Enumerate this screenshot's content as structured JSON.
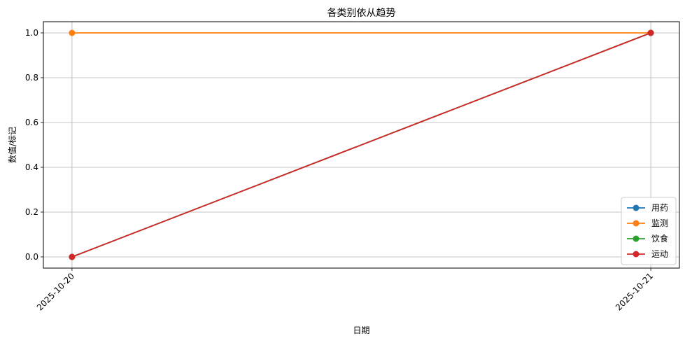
{
  "chart_data": {
    "type": "line",
    "title": "各类别依从趋势",
    "xlabel": "日期",
    "ylabel": "数值/标记",
    "x": [
      "2025-10-20",
      "2025-10-21"
    ],
    "ylim": [
      -0.05,
      1.05
    ],
    "yticks": [
      "0.0",
      "0.2",
      "0.4",
      "0.6",
      "0.8",
      "1.0"
    ],
    "grid": true,
    "legend_position": "lower-right",
    "series": [
      {
        "name": "用药",
        "color": "#1f77b4",
        "values": [
          0,
          1
        ]
      },
      {
        "name": "监测",
        "color": "#ff7f0e",
        "values": [
          1,
          1
        ]
      },
      {
        "name": "饮食",
        "color": "#2ca02c",
        "values": [
          0,
          1
        ]
      },
      {
        "name": "运动",
        "color": "#d62728",
        "values": [
          0,
          1
        ]
      }
    ]
  }
}
